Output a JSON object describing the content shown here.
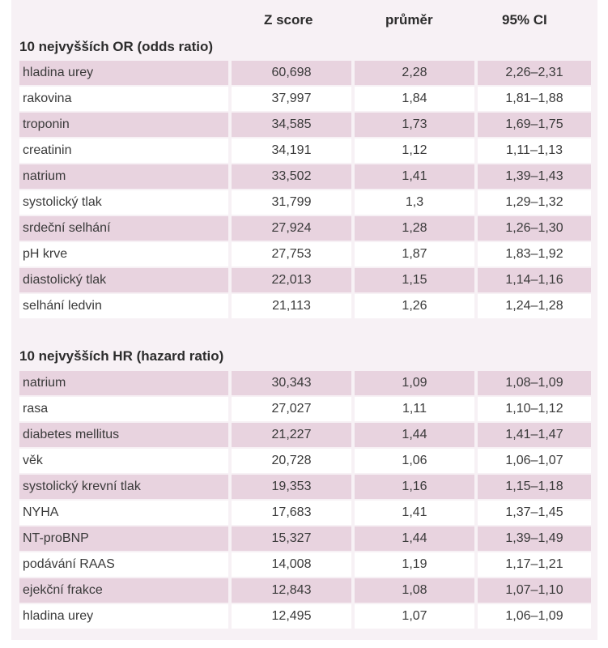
{
  "columns": {
    "z_score": "Z score",
    "prumer": "průměr",
    "ci": "95% CI"
  },
  "or_section": {
    "title": "10 nejvyšších OR (odds ratio)",
    "rows": [
      {
        "name": "hladina urey",
        "z": "60,698",
        "mean": "2,28",
        "ci": "2,26–2,31"
      },
      {
        "name": "rakovina",
        "z": "37,997",
        "mean": "1,84",
        "ci": "1,81–1,88"
      },
      {
        "name": "troponin",
        "z": "34,585",
        "mean": "1,73",
        "ci": "1,69–1,75"
      },
      {
        "name": "creatinin",
        "z": "34,191",
        "mean": "1,12",
        "ci": "1,11–1,13"
      },
      {
        "name": "natrium",
        "z": "33,502",
        "mean": "1,41",
        "ci": "1,39–1,43"
      },
      {
        "name": "systolický tlak",
        "z": "31,799",
        "mean": "1,3",
        "ci": "1,29–1,32"
      },
      {
        "name": "srdeční selhání",
        "z": "27,924",
        "mean": "1,28",
        "ci": "1,26–1,30"
      },
      {
        "name": "pH krve",
        "z": "27,753",
        "mean": "1,87",
        "ci": "1,83–1,92"
      },
      {
        "name": "diastolický tlak",
        "z": "22,013",
        "mean": "1,15",
        "ci": "1,14–1,16"
      },
      {
        "name": "selhání ledvin",
        "z": "21,113",
        "mean": "1,26",
        "ci": "1,24–1,28"
      }
    ]
  },
  "hr_section": {
    "title": "10 nejvyšších HR (hazard ratio)",
    "rows": [
      {
        "name": "natrium",
        "z": "30,343",
        "mean": "1,09",
        "ci": "1,08–1,09"
      },
      {
        "name": "rasa",
        "z": "27,027",
        "mean": "1,11",
        "ci": "1,10–1,12"
      },
      {
        "name": "diabetes mellitus",
        "z": "21,227",
        "mean": "1,44",
        "ci": "1,41–1,47"
      },
      {
        "name": "věk",
        "z": "20,728",
        "mean": "1,06",
        "ci": "1,06–1,07"
      },
      {
        "name": "systolický krevní tlak",
        "z": "19,353",
        "mean": "1,16",
        "ci": "1,15–1,18"
      },
      {
        "name": "NYHA",
        "z": "17,683",
        "mean": "1,41",
        "ci": "1,37–1,45"
      },
      {
        "name": "NT-proBNP",
        "z": "15,327",
        "mean": "1,44",
        "ci": "1,39–1,49"
      },
      {
        "name": "podávání RAAS",
        "z": "14,008",
        "mean": "1,19",
        "ci": "1,17–1,21"
      },
      {
        "name": "ejekční frakce",
        "z": "12,843",
        "mean": "1,08",
        "ci": "1,07–1,10"
      },
      {
        "name": "hladina urey",
        "z": "12,495",
        "mean": "1,07",
        "ci": "1,06–1,09"
      }
    ]
  }
}
